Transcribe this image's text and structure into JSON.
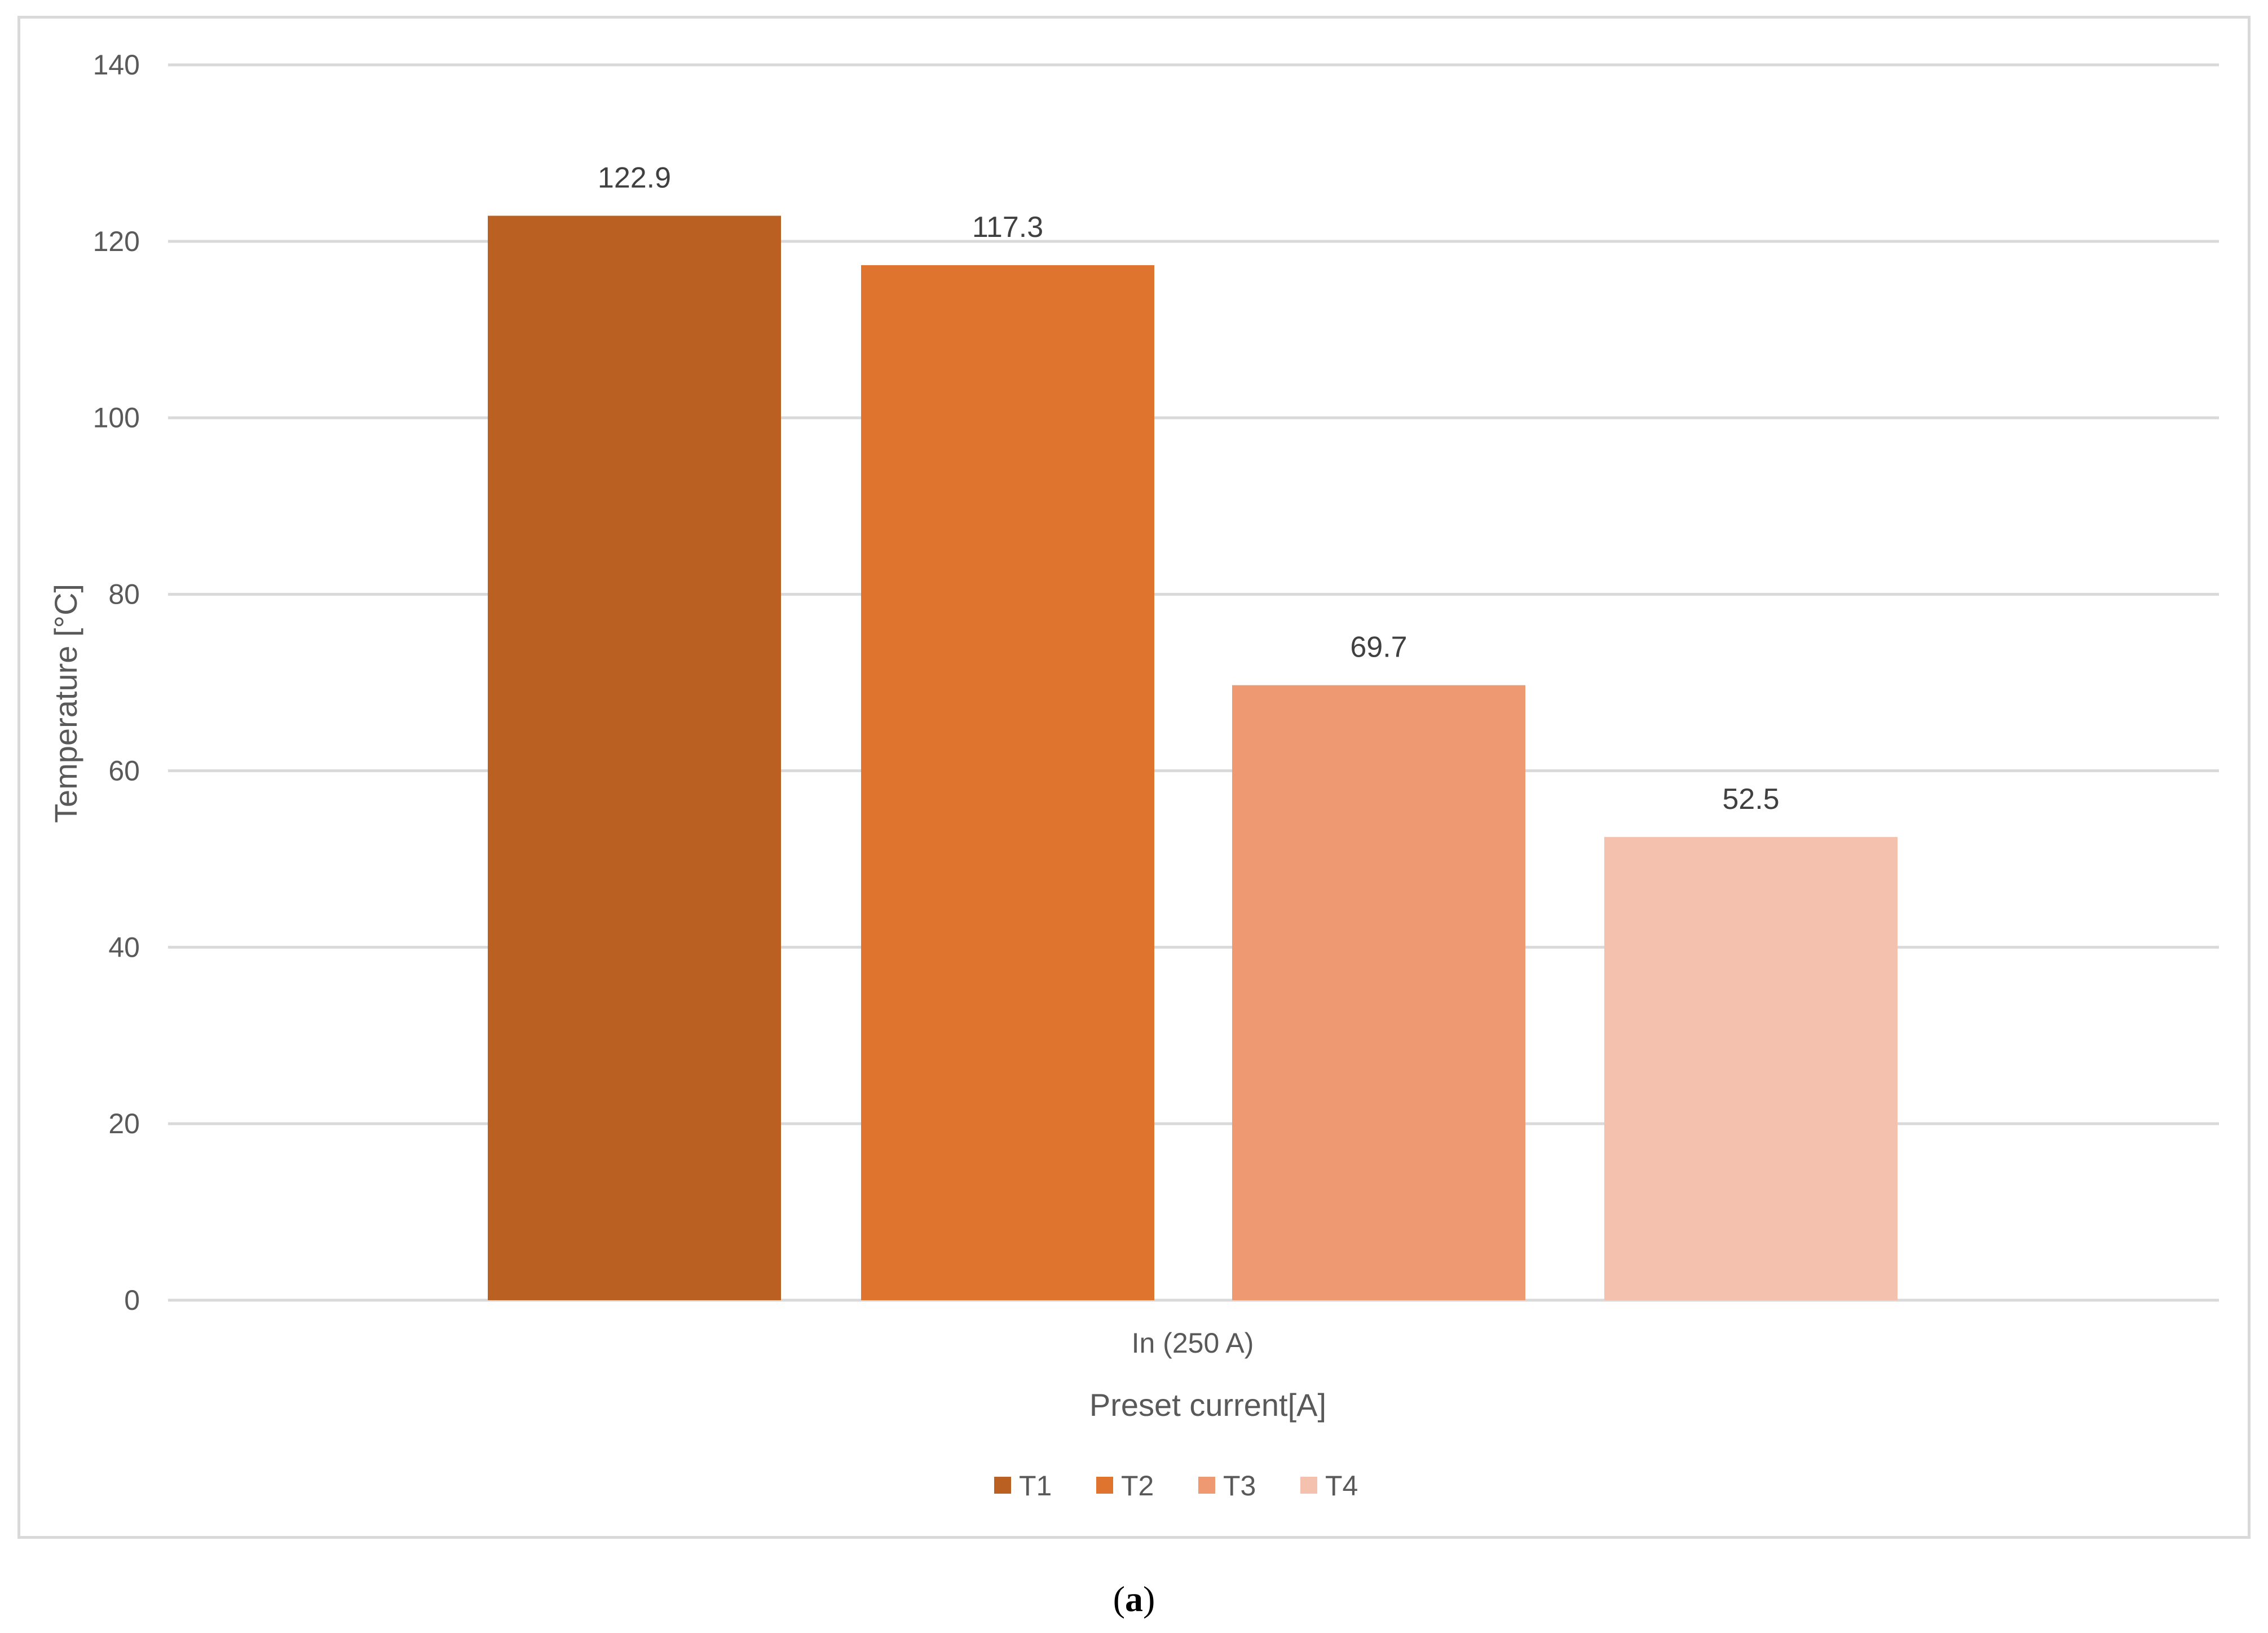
{
  "chart_data": {
    "type": "bar",
    "categories": [
      "In (250 A)"
    ],
    "series": [
      {
        "name": "T1",
        "values": [
          122.9
        ],
        "color": "#BA6022"
      },
      {
        "name": "T2",
        "values": [
          117.3
        ],
        "color": "#DE742D"
      },
      {
        "name": "T3",
        "values": [
          69.7
        ],
        "color": "#EE9972"
      },
      {
        "name": "T4",
        "values": [
          52.5
        ],
        "color": "#F4C1AE"
      }
    ],
    "data_labels": [
      "122.9",
      "117.3",
      "69.7",
      "52.5"
    ],
    "xlabel": "Preset current[A]",
    "ylabel": "Temperature [°C]",
    "ylim": [
      0,
      140
    ],
    "yticks": [
      0,
      20,
      40,
      60,
      80,
      100,
      120,
      140
    ],
    "grid": true,
    "legend_position": "bottom",
    "gridline_color": "#d9d9d9"
  },
  "caption": {
    "open": "(",
    "letter": "a",
    "close": ")"
  }
}
